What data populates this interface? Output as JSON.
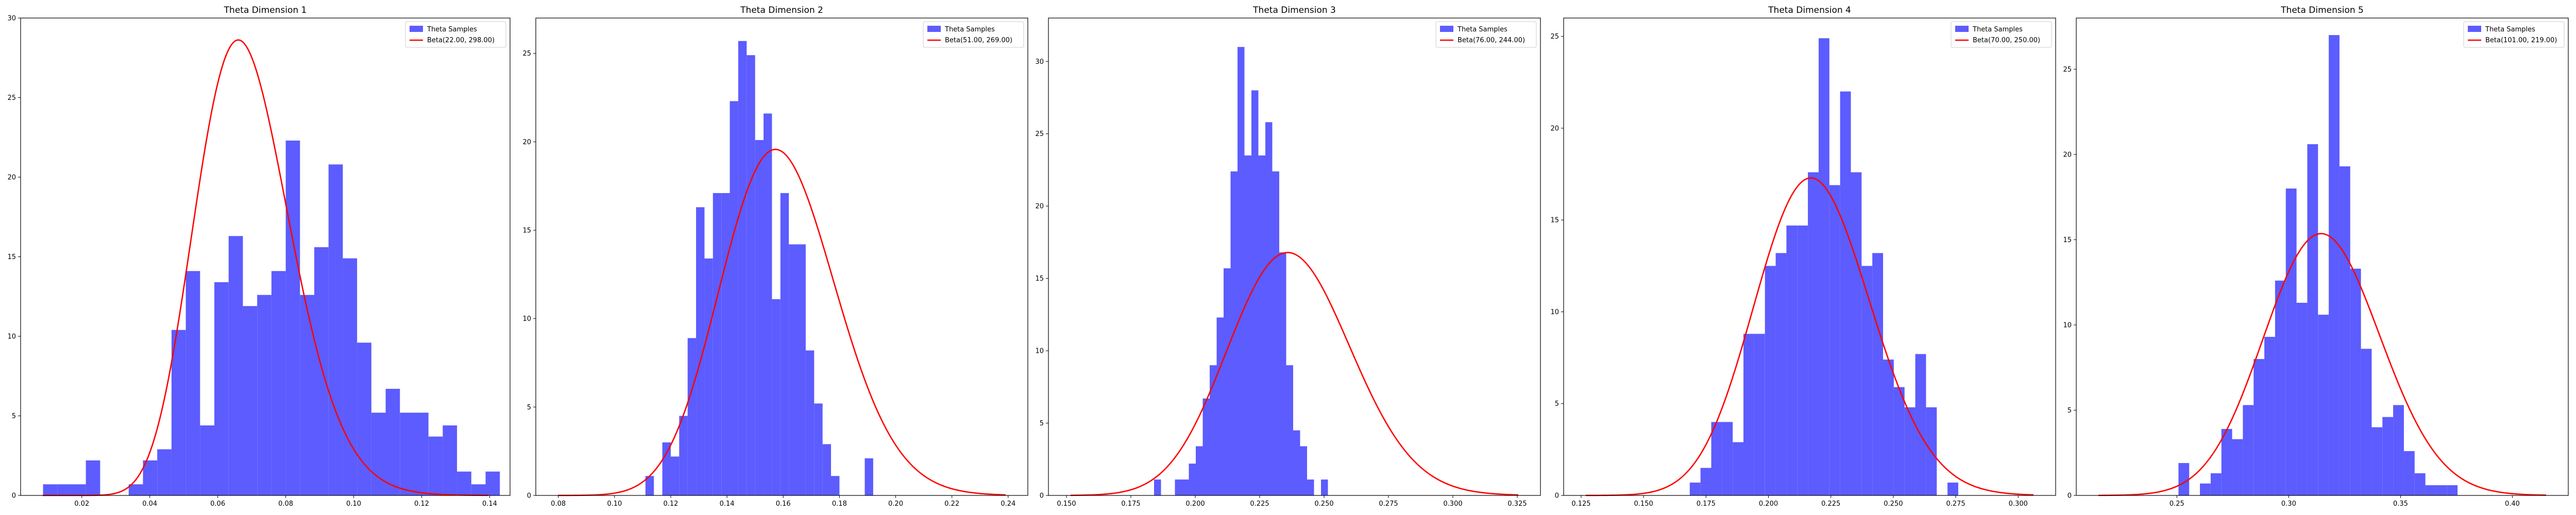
{
  "style": {
    "hist_color": "#5c5cff",
    "curve_color": "#ff0000",
    "axes_color": "#000000",
    "background": "#ffffff"
  },
  "chart_data": [
    {
      "type": "histogram+line",
      "title": "Theta Dimension 1",
      "legend": {
        "position": "top-right",
        "entries": [
          "Theta Samples",
          "Beta(22.00, 298.00)"
        ]
      },
      "beta": {
        "a": 22,
        "b": 298
      },
      "xlim": [
        0.002,
        0.146
      ],
      "ylim": [
        0,
        30
      ],
      "xticks": [
        0.02,
        0.04,
        0.06,
        0.08,
        0.1,
        0.12,
        0.14
      ],
      "xtick_labels": [
        "0.02",
        "0.04",
        "0.06",
        "0.08",
        "0.10",
        "0.12",
        "0.14"
      ],
      "yticks": [
        0,
        5,
        10,
        15,
        20,
        25,
        30
      ],
      "ytick_labels": [
        "0",
        "5",
        "10",
        "15",
        "20",
        "25",
        "30"
      ],
      "hist": {
        "x_start": 0.0086,
        "bin_width": 0.0042,
        "heights": [
          0.7,
          0.7,
          0.7,
          2.2,
          0,
          0,
          0.7,
          2.2,
          2.9,
          10.4,
          14.1,
          4.4,
          13.4,
          16.3,
          11.9,
          12.6,
          14.1,
          22.3,
          12.6,
          15.6,
          20.8,
          14.9,
          9.6,
          5.2,
          6.7,
          5.2,
          5.2,
          3.7,
          4.4,
          1.5,
          0.7,
          1.5
        ]
      }
    },
    {
      "type": "histogram+line",
      "title": "Theta Dimension 2",
      "legend": {
        "position": "top-right",
        "entries": [
          "Theta Samples",
          "Beta(51.00, 269.00)"
        ]
      },
      "beta": {
        "a": 51,
        "b": 269
      },
      "xlim": [
        0.072,
        0.247
      ],
      "ylim": [
        0,
        27
      ],
      "xticks": [
        0.08,
        0.1,
        0.12,
        0.14,
        0.16,
        0.18,
        0.2,
        0.22,
        0.24
      ],
      "xtick_labels": [
        "0.08",
        "0.10",
        "0.12",
        "0.14",
        "0.16",
        "0.18",
        "0.20",
        "0.22",
        "0.24"
      ],
      "yticks": [
        0,
        5,
        10,
        15,
        20,
        25
      ],
      "ytick_labels": [
        "0",
        "5",
        "10",
        "15",
        "20",
        "25"
      ],
      "hist": {
        "x_start": 0.111,
        "bin_width": 0.003,
        "heights": [
          1.1,
          0,
          3.0,
          2.2,
          4.5,
          8.9,
          16.3,
          13.4,
          17.1,
          17.1,
          22.3,
          25.7,
          24.9,
          20.1,
          21.6,
          11.1,
          17.1,
          14.2,
          14.2,
          8.2,
          5.2,
          2.9,
          1.1,
          0,
          0,
          0,
          2.1
        ]
      }
    },
    {
      "type": "histogram+line",
      "title": "Theta Dimension 3",
      "legend": {
        "position": "top-right",
        "entries": [
          "Theta Samples",
          "Beta(76.00, 244.00)"
        ]
      },
      "beta": {
        "a": 76,
        "b": 244
      },
      "xlim": [
        0.143,
        0.334
      ],
      "ylim": [
        0,
        33
      ],
      "xticks": [
        0.15,
        0.175,
        0.2,
        0.225,
        0.25,
        0.275,
        0.3,
        0.325
      ],
      "xtick_labels": [
        "0.150",
        "0.175",
        "0.200",
        "0.225",
        "0.250",
        "0.275",
        "0.300",
        "0.325"
      ],
      "yticks": [
        0,
        5,
        10,
        15,
        20,
        25,
        30
      ],
      "ytick_labels": [
        "0",
        "5",
        "10",
        "15",
        "20",
        "25",
        "30"
      ],
      "hist": {
        "x_start": 0.184,
        "bin_width": 0.0027,
        "heights": [
          1.1,
          0,
          0,
          1.1,
          1.1,
          2.2,
          3.4,
          6.7,
          9.0,
          12.3,
          15.7,
          22.4,
          31.0,
          23.5,
          28.0,
          23.5,
          25.8,
          22.4,
          16.8,
          9.0,
          4.5,
          3.4,
          1.1,
          0,
          1.1
        ]
      }
    },
    {
      "type": "histogram+line",
      "title": "Theta Dimension 4",
      "legend": {
        "position": "top-right",
        "entries": [
          "Theta Samples",
          "Beta(70.00, 250.00)"
        ]
      },
      "beta": {
        "a": 70,
        "b": 250
      },
      "xlim": [
        0.118,
        0.315
      ],
      "ylim": [
        0,
        26
      ],
      "xticks": [
        0.125,
        0.15,
        0.175,
        0.2,
        0.225,
        0.25,
        0.275,
        0.3
      ],
      "xtick_labels": [
        "0.125",
        "0.150",
        "0.175",
        "0.200",
        "0.225",
        "0.250",
        "0.275",
        "0.300"
      ],
      "yticks": [
        0,
        5,
        10,
        15,
        20,
        25
      ],
      "ytick_labels": [
        "0",
        "5",
        "10",
        "15",
        "20",
        "25"
      ],
      "hist": {
        "x_start": 0.1685,
        "bin_width": 0.0043,
        "heights": [
          0.7,
          1.5,
          4.0,
          4.0,
          2.9,
          8.8,
          8.8,
          12.5,
          13.2,
          14.7,
          14.7,
          17.6,
          24.9,
          16.9,
          22.0,
          17.6,
          12.5,
          13.2,
          7.4,
          5.9,
          4.8,
          7.7,
          4.8,
          0,
          0.7
        ]
      }
    },
    {
      "type": "histogram+line",
      "title": "Theta Dimension 5",
      "legend": {
        "position": "top-right",
        "entries": [
          "Theta Samples",
          "Beta(101.00, 219.00)"
        ]
      },
      "beta": {
        "a": 101,
        "b": 219
      },
      "xlim": [
        0.205,
        0.425
      ],
      "ylim": [
        0,
        28
      ],
      "xticks": [
        0.25,
        0.3,
        0.35,
        0.4
      ],
      "xtick_labels": [
        "0.25",
        "0.30",
        "0.35",
        "0.40"
      ],
      "yticks": [
        0,
        5,
        10,
        15,
        20,
        25
      ],
      "ytick_labels": [
        "0",
        "5",
        "10",
        "15",
        "20",
        "25"
      ],
      "hist": {
        "x_start": 0.2507,
        "bin_width": 0.0048,
        "heights": [
          1.9,
          0,
          0.7,
          1.3,
          3.9,
          3.3,
          5.3,
          8.0,
          9.3,
          12.6,
          18.0,
          11.3,
          20.6,
          10.6,
          27.0,
          19.3,
          13.3,
          8.6,
          4.0,
          4.6,
          5.3,
          2.6,
          1.3,
          0.6,
          0.6,
          0.6
        ]
      }
    }
  ]
}
